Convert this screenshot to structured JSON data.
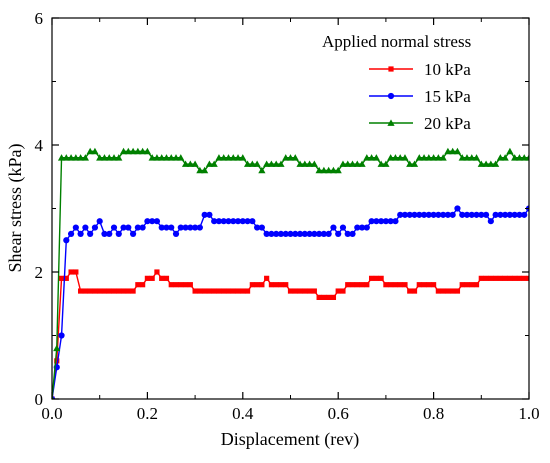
{
  "chart_data": {
    "type": "line",
    "xlabel": "Displacement (rev)",
    "ylabel": "Shear stress (kPa)",
    "xlim": [
      0,
      1.0
    ],
    "ylim": [
      0,
      6
    ],
    "x_ticks": [
      "0.0",
      "0.2",
      "0.4",
      "0.6",
      "0.8",
      "1.0"
    ],
    "y_ticks": [
      "0",
      "2",
      "4",
      "6"
    ],
    "grid": false,
    "legend": {
      "title": "Applied normal stress",
      "placement": "top-right"
    },
    "series": [
      {
        "name": "10 kPa",
        "color": "#ff0000",
        "marker": "square",
        "x": [
          0,
          0.01,
          0.02,
          0.03,
          0.04,
          0.05,
          0.06,
          0.07,
          0.08,
          0.09,
          0.1,
          0.11,
          0.12,
          0.13,
          0.14,
          0.15,
          0.16,
          0.17,
          0.18,
          0.19,
          0.2,
          0.21,
          0.22,
          0.23,
          0.24,
          0.25,
          0.26,
          0.27,
          0.28,
          0.29,
          0.3,
          0.31,
          0.32,
          0.33,
          0.34,
          0.35,
          0.36,
          0.37,
          0.38,
          0.39,
          0.4,
          0.41,
          0.42,
          0.43,
          0.44,
          0.45,
          0.46,
          0.47,
          0.48,
          0.49,
          0.5,
          0.51,
          0.52,
          0.53,
          0.54,
          0.55,
          0.56,
          0.57,
          0.58,
          0.59,
          0.6,
          0.61,
          0.62,
          0.63,
          0.64,
          0.65,
          0.66,
          0.67,
          0.68,
          0.69,
          0.7,
          0.71,
          0.72,
          0.73,
          0.74,
          0.75,
          0.76,
          0.77,
          0.78,
          0.79,
          0.8,
          0.81,
          0.82,
          0.83,
          0.84,
          0.85,
          0.86,
          0.87,
          0.88,
          0.89,
          0.9,
          0.91,
          0.92,
          0.93,
          0.94,
          0.95,
          0.96,
          0.97,
          0.98,
          0.99,
          1.0
        ],
        "y": [
          0,
          0.6,
          1.9,
          1.9,
          2.0,
          2.0,
          1.7,
          1.7,
          1.7,
          1.7,
          1.7,
          1.7,
          1.7,
          1.7,
          1.7,
          1.7,
          1.7,
          1.7,
          1.8,
          1.8,
          1.9,
          1.9,
          2.0,
          1.9,
          1.9,
          1.8,
          1.8,
          1.8,
          1.8,
          1.8,
          1.7,
          1.7,
          1.7,
          1.7,
          1.7,
          1.7,
          1.7,
          1.7,
          1.7,
          1.7,
          1.7,
          1.7,
          1.8,
          1.8,
          1.8,
          1.9,
          1.8,
          1.8,
          1.8,
          1.8,
          1.7,
          1.7,
          1.7,
          1.7,
          1.7,
          1.7,
          1.6,
          1.6,
          1.6,
          1.6,
          1.7,
          1.7,
          1.8,
          1.8,
          1.8,
          1.8,
          1.8,
          1.9,
          1.9,
          1.9,
          1.8,
          1.8,
          1.8,
          1.8,
          1.8,
          1.7,
          1.7,
          1.8,
          1.8,
          1.8,
          1.8,
          1.7,
          1.7,
          1.7,
          1.7,
          1.7,
          1.8,
          1.8,
          1.8,
          1.8,
          1.9,
          1.9,
          1.9,
          1.9,
          1.9,
          1.9,
          1.9,
          1.9,
          1.9,
          1.9,
          1.9
        ]
      },
      {
        "name": "15 kPa",
        "color": "#0000ff",
        "marker": "circle",
        "x": [
          0,
          0.01,
          0.02,
          0.03,
          0.04,
          0.05,
          0.06,
          0.07,
          0.08,
          0.09,
          0.1,
          0.11,
          0.12,
          0.13,
          0.14,
          0.15,
          0.16,
          0.17,
          0.18,
          0.19,
          0.2,
          0.21,
          0.22,
          0.23,
          0.24,
          0.25,
          0.26,
          0.27,
          0.28,
          0.29,
          0.3,
          0.31,
          0.32,
          0.33,
          0.34,
          0.35,
          0.36,
          0.37,
          0.38,
          0.39,
          0.4,
          0.41,
          0.42,
          0.43,
          0.44,
          0.45,
          0.46,
          0.47,
          0.48,
          0.49,
          0.5,
          0.51,
          0.52,
          0.53,
          0.54,
          0.55,
          0.56,
          0.57,
          0.58,
          0.59,
          0.6,
          0.61,
          0.62,
          0.63,
          0.64,
          0.65,
          0.66,
          0.67,
          0.68,
          0.69,
          0.7,
          0.71,
          0.72,
          0.73,
          0.74,
          0.75,
          0.76,
          0.77,
          0.78,
          0.79,
          0.8,
          0.81,
          0.82,
          0.83,
          0.84,
          0.85,
          0.86,
          0.87,
          0.88,
          0.89,
          0.9,
          0.91,
          0.92,
          0.93,
          0.94,
          0.95,
          0.96,
          0.97,
          0.98,
          0.99,
          1.0
        ],
        "y": [
          0,
          0.5,
          1.0,
          2.5,
          2.6,
          2.7,
          2.6,
          2.7,
          2.6,
          2.7,
          2.8,
          2.6,
          2.6,
          2.7,
          2.6,
          2.7,
          2.7,
          2.6,
          2.7,
          2.7,
          2.8,
          2.8,
          2.8,
          2.7,
          2.7,
          2.7,
          2.6,
          2.7,
          2.7,
          2.7,
          2.7,
          2.7,
          2.9,
          2.9,
          2.8,
          2.8,
          2.8,
          2.8,
          2.8,
          2.8,
          2.8,
          2.8,
          2.8,
          2.7,
          2.7,
          2.6,
          2.6,
          2.6,
          2.6,
          2.6,
          2.6,
          2.6,
          2.6,
          2.6,
          2.6,
          2.6,
          2.6,
          2.6,
          2.6,
          2.7,
          2.6,
          2.7,
          2.6,
          2.6,
          2.7,
          2.7,
          2.7,
          2.8,
          2.8,
          2.8,
          2.8,
          2.8,
          2.8,
          2.9,
          2.9,
          2.9,
          2.9,
          2.9,
          2.9,
          2.9,
          2.9,
          2.9,
          2.9,
          2.9,
          2.9,
          3.0,
          2.9,
          2.9,
          2.9,
          2.9,
          2.9,
          2.9,
          2.8,
          2.9,
          2.9,
          2.9,
          2.9,
          2.9,
          2.9,
          2.9,
          3.0
        ]
      },
      {
        "name": "20 kPa",
        "color": "#008000",
        "marker": "triangle",
        "x": [
          0,
          0.01,
          0.02,
          0.03,
          0.04,
          0.05,
          0.06,
          0.07,
          0.08,
          0.09,
          0.1,
          0.11,
          0.12,
          0.13,
          0.14,
          0.15,
          0.16,
          0.17,
          0.18,
          0.19,
          0.2,
          0.21,
          0.22,
          0.23,
          0.24,
          0.25,
          0.26,
          0.27,
          0.28,
          0.29,
          0.3,
          0.31,
          0.32,
          0.33,
          0.34,
          0.35,
          0.36,
          0.37,
          0.38,
          0.39,
          0.4,
          0.41,
          0.42,
          0.43,
          0.44,
          0.45,
          0.46,
          0.47,
          0.48,
          0.49,
          0.5,
          0.51,
          0.52,
          0.53,
          0.54,
          0.55,
          0.56,
          0.57,
          0.58,
          0.59,
          0.6,
          0.61,
          0.62,
          0.63,
          0.64,
          0.65,
          0.66,
          0.67,
          0.68,
          0.69,
          0.7,
          0.71,
          0.72,
          0.73,
          0.74,
          0.75,
          0.76,
          0.77,
          0.78,
          0.79,
          0.8,
          0.81,
          0.82,
          0.83,
          0.84,
          0.85,
          0.86,
          0.87,
          0.88,
          0.89,
          0.9,
          0.91,
          0.92,
          0.93,
          0.94,
          0.95,
          0.96,
          0.97,
          0.98,
          0.99,
          1.0
        ],
        "y": [
          0,
          0.8,
          3.8,
          3.8,
          3.8,
          3.8,
          3.8,
          3.8,
          3.9,
          3.9,
          3.8,
          3.8,
          3.8,
          3.8,
          3.8,
          3.9,
          3.9,
          3.9,
          3.9,
          3.9,
          3.9,
          3.8,
          3.8,
          3.8,
          3.8,
          3.8,
          3.8,
          3.8,
          3.7,
          3.7,
          3.7,
          3.6,
          3.6,
          3.7,
          3.7,
          3.8,
          3.8,
          3.8,
          3.8,
          3.8,
          3.8,
          3.7,
          3.7,
          3.7,
          3.6,
          3.7,
          3.7,
          3.7,
          3.7,
          3.8,
          3.8,
          3.8,
          3.7,
          3.7,
          3.7,
          3.7,
          3.6,
          3.6,
          3.6,
          3.6,
          3.6,
          3.7,
          3.7,
          3.7,
          3.7,
          3.7,
          3.8,
          3.8,
          3.8,
          3.7,
          3.7,
          3.8,
          3.8,
          3.8,
          3.8,
          3.7,
          3.7,
          3.8,
          3.8,
          3.8,
          3.8,
          3.8,
          3.8,
          3.9,
          3.9,
          3.9,
          3.8,
          3.8,
          3.8,
          3.8,
          3.7,
          3.7,
          3.7,
          3.7,
          3.8,
          3.8,
          3.9,
          3.8,
          3.8,
          3.8,
          3.8
        ]
      }
    ]
  }
}
